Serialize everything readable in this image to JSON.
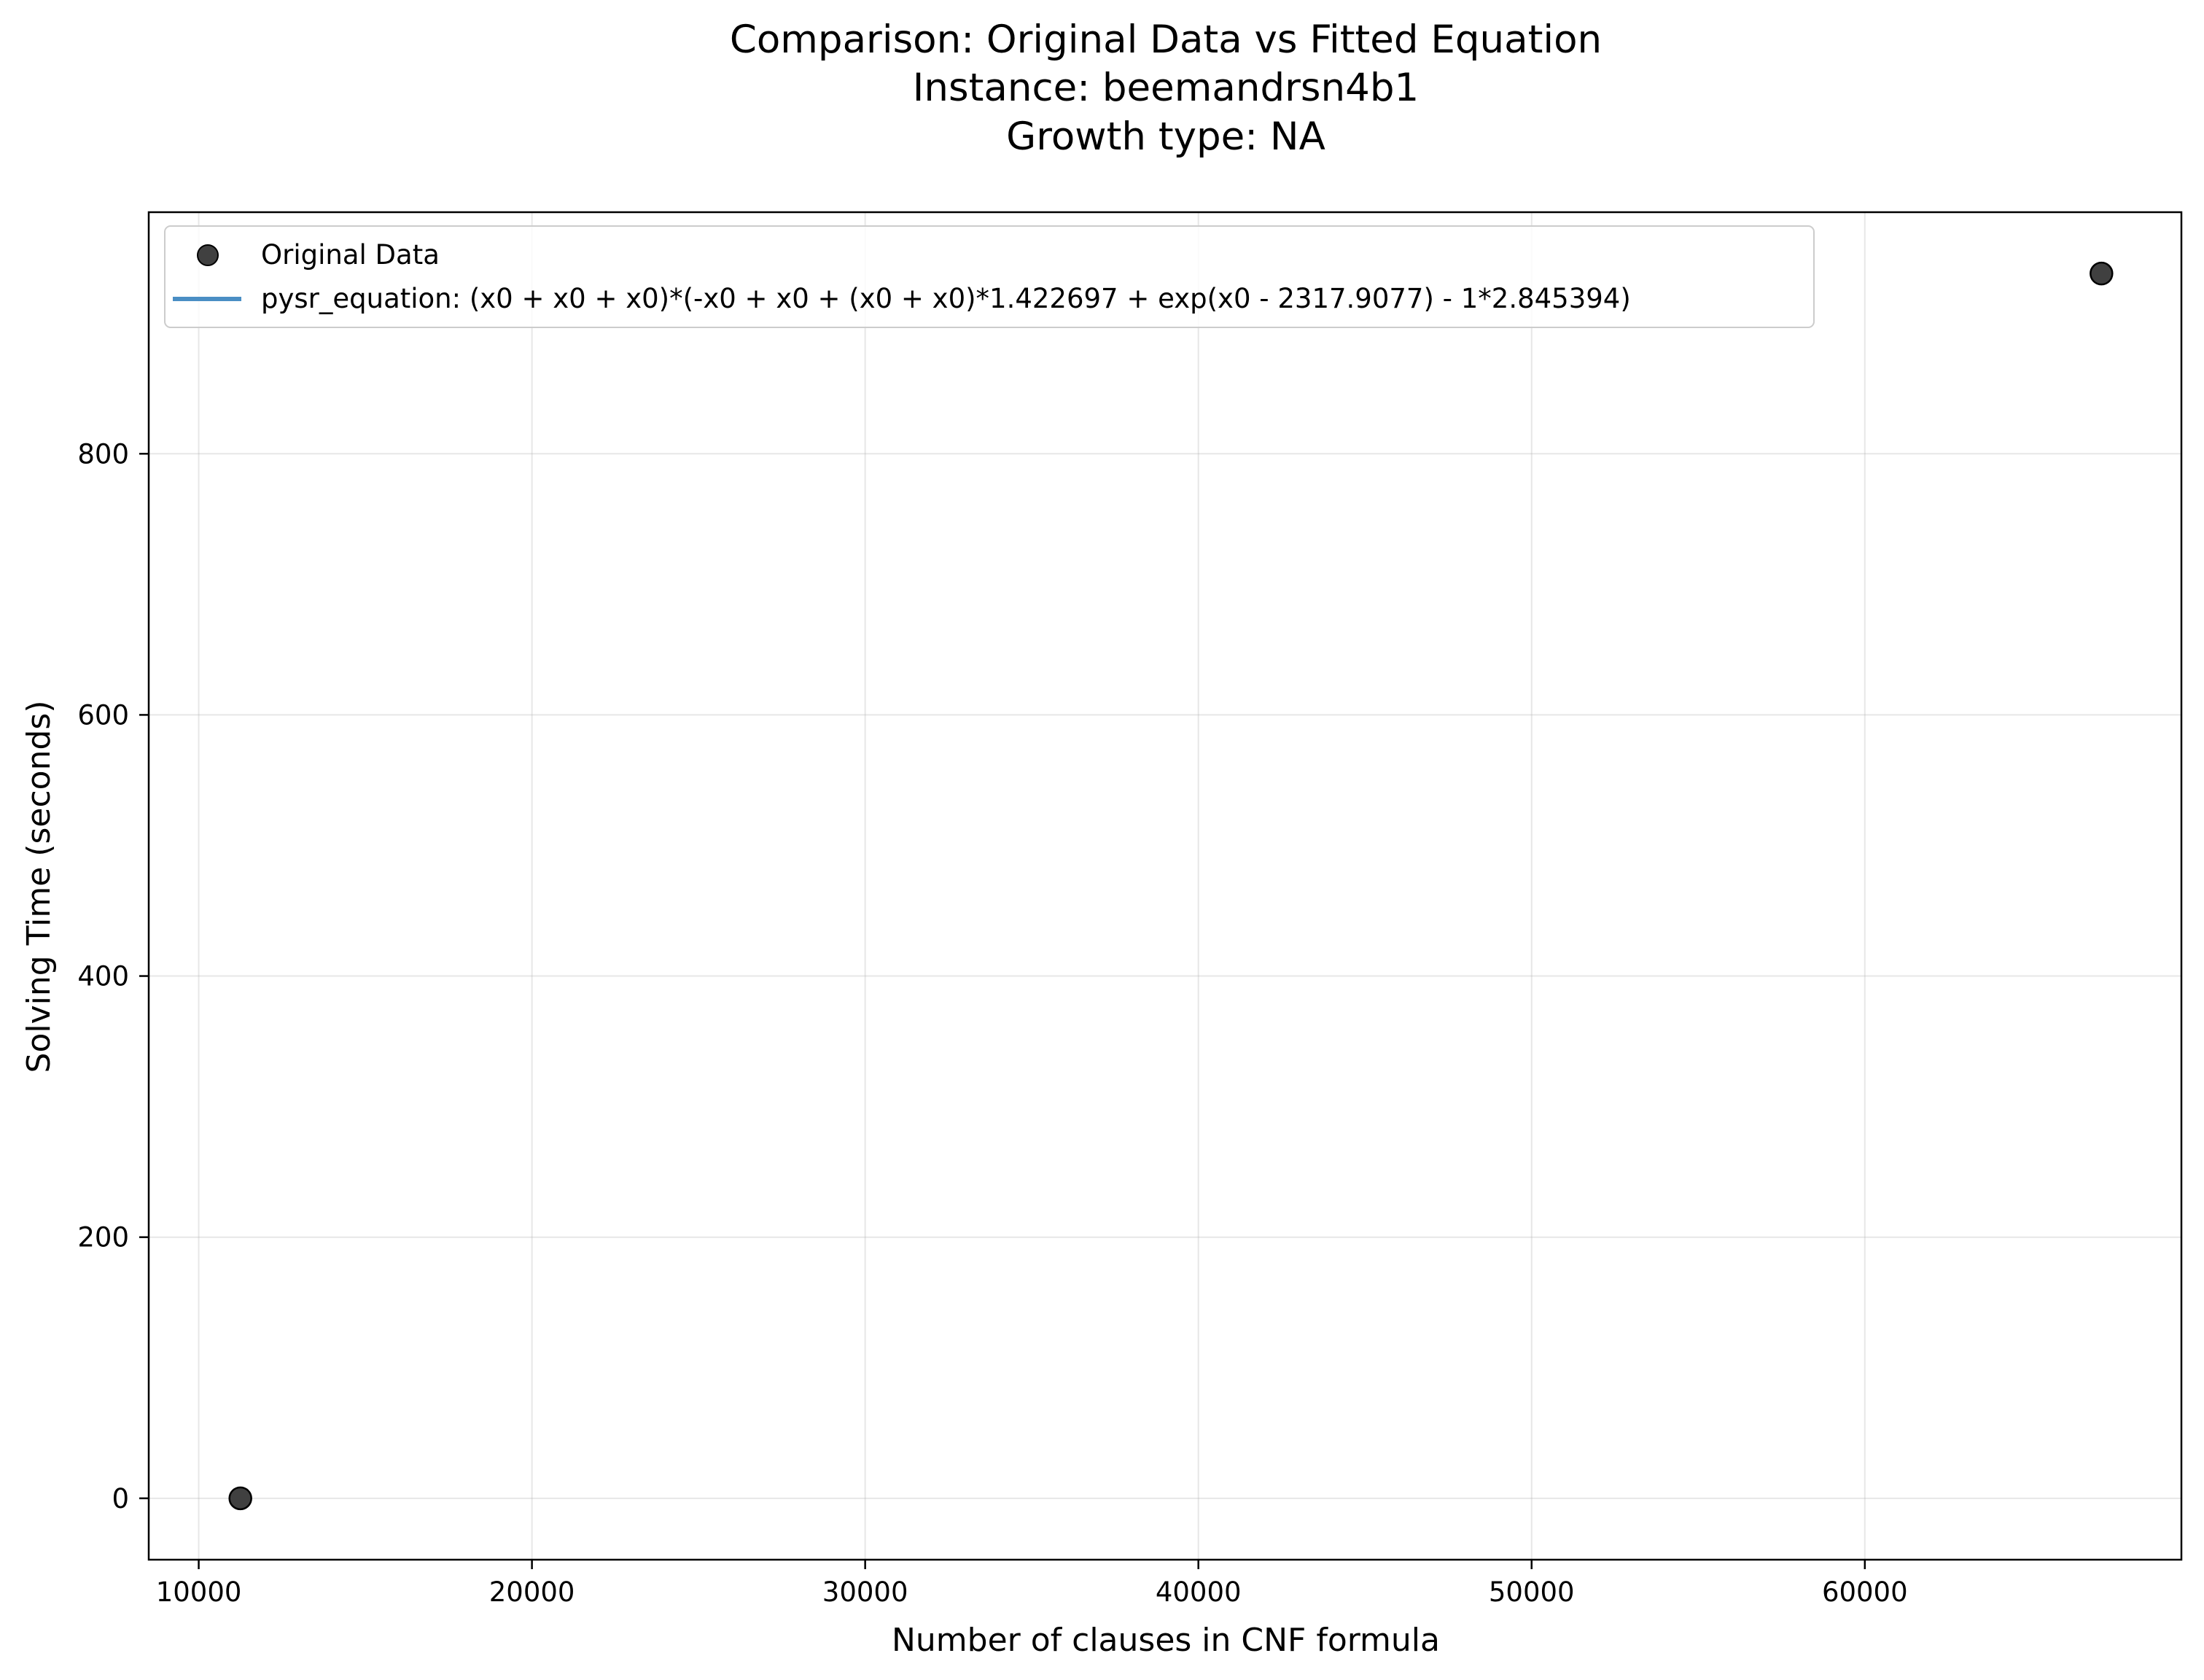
{
  "chart_data": {
    "type": "scatter",
    "title_lines": [
      "Comparison: Original Data vs Fitted Equation",
      "Instance: beemandrsn4b1",
      "Growth type: NA"
    ],
    "xlabel": "Number of clauses in CNF formula",
    "ylabel": "Solving Time (seconds)",
    "xlim": [
      8500,
      69500
    ],
    "ylim": [
      -47,
      985
    ],
    "xticks": [
      10000,
      20000,
      30000,
      40000,
      50000,
      60000
    ],
    "yticks": [
      0,
      200,
      400,
      600,
      800
    ],
    "grid": true,
    "legend_position": "top-left",
    "series": [
      {
        "name": "Original Data",
        "kind": "scatter",
        "color": "#404040",
        "x": [
          11250,
          67100
        ],
        "y": [
          0,
          938
        ]
      },
      {
        "name": "pysr_equation: (x0 + x0 + x0)*(-x0 + x0 + (x0 + x0)*1.422697 + exp(x0 - 2317.9077) - 1*2.845394)",
        "kind": "line",
        "color": "#4a8ec4",
        "x": [],
        "y": []
      }
    ]
  }
}
